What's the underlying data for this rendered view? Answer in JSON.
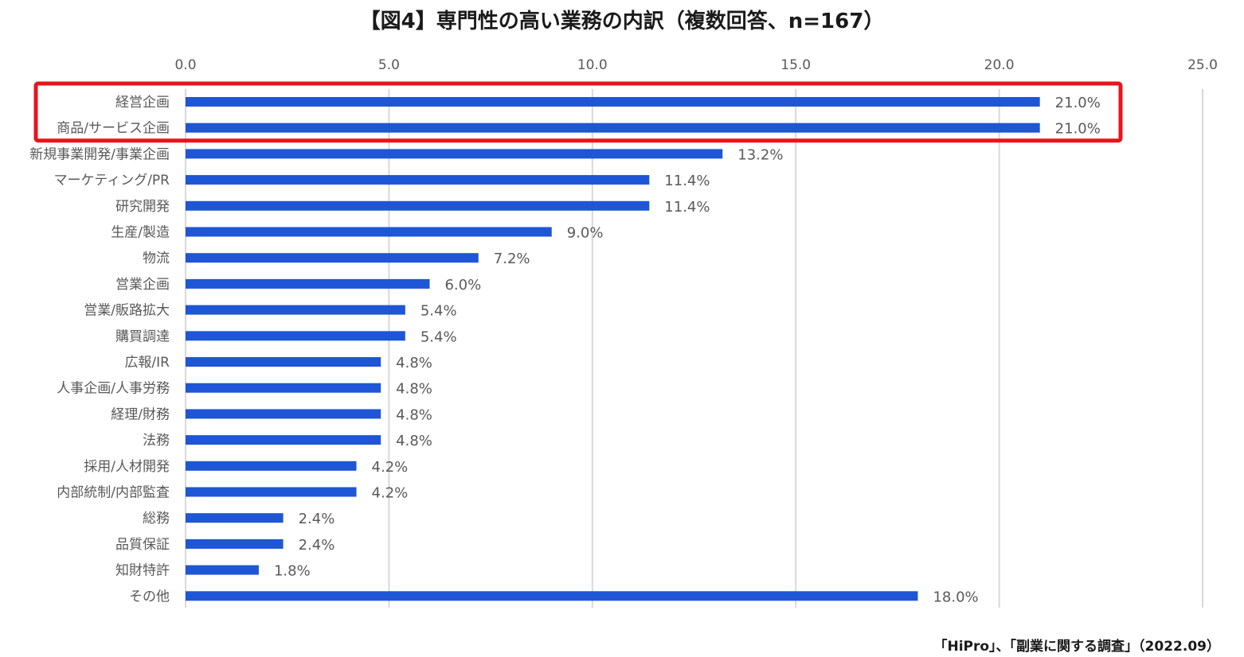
{
  "title": "【図4】専門性の高い業務の内訳（複数回答、n=167）",
  "source": "「HiPro」、「副業に関する調査」（2022.09）",
  "colors": {
    "bar": "#1f56d6",
    "grid": "#d9d9d9",
    "highlight": "#e8141c",
    "text": "#595959"
  },
  "chart_data": {
    "type": "bar",
    "orientation": "horizontal",
    "title": "【図4】専門性の高い業務の内訳（複数回答、n=167）",
    "xlim": [
      0,
      25
    ],
    "x_ticks": [
      "0.0",
      "5.0",
      "10.0",
      "15.0",
      "20.0",
      "25.0"
    ],
    "grid": true,
    "categories": [
      "経営企画",
      "商品/サービス企画",
      "新規事業開発/事業企画",
      "マーケティング/PR",
      "研究開発",
      "生産/製造",
      "物流",
      "営業企画",
      "営業/販路拡大",
      "購買調達",
      "広報/IR",
      "人事企画/人事労務",
      "経理/財務",
      "法務",
      "採用/人材開発",
      "内部統制/内部監査",
      "総務",
      "品質保証",
      "知財特許",
      "その他"
    ],
    "values": [
      21.0,
      21.0,
      13.2,
      11.4,
      11.4,
      9.0,
      7.2,
      6.0,
      5.4,
      5.4,
      4.8,
      4.8,
      4.8,
      4.8,
      4.2,
      4.2,
      2.4,
      2.4,
      1.8,
      18.0
    ],
    "data_labels": [
      "21.0%",
      "21.0%",
      "13.2%",
      "11.4%",
      "11.4%",
      "9.0%",
      "7.2%",
      "6.0%",
      "5.4%",
      "5.4%",
      "4.8%",
      "4.8%",
      "4.8%",
      "4.8%",
      "4.2%",
      "4.2%",
      "2.4%",
      "2.4%",
      "1.8%",
      "18.0%"
    ],
    "highlighted_categories": [
      "経営企画",
      "商品/サービス企画"
    ]
  }
}
